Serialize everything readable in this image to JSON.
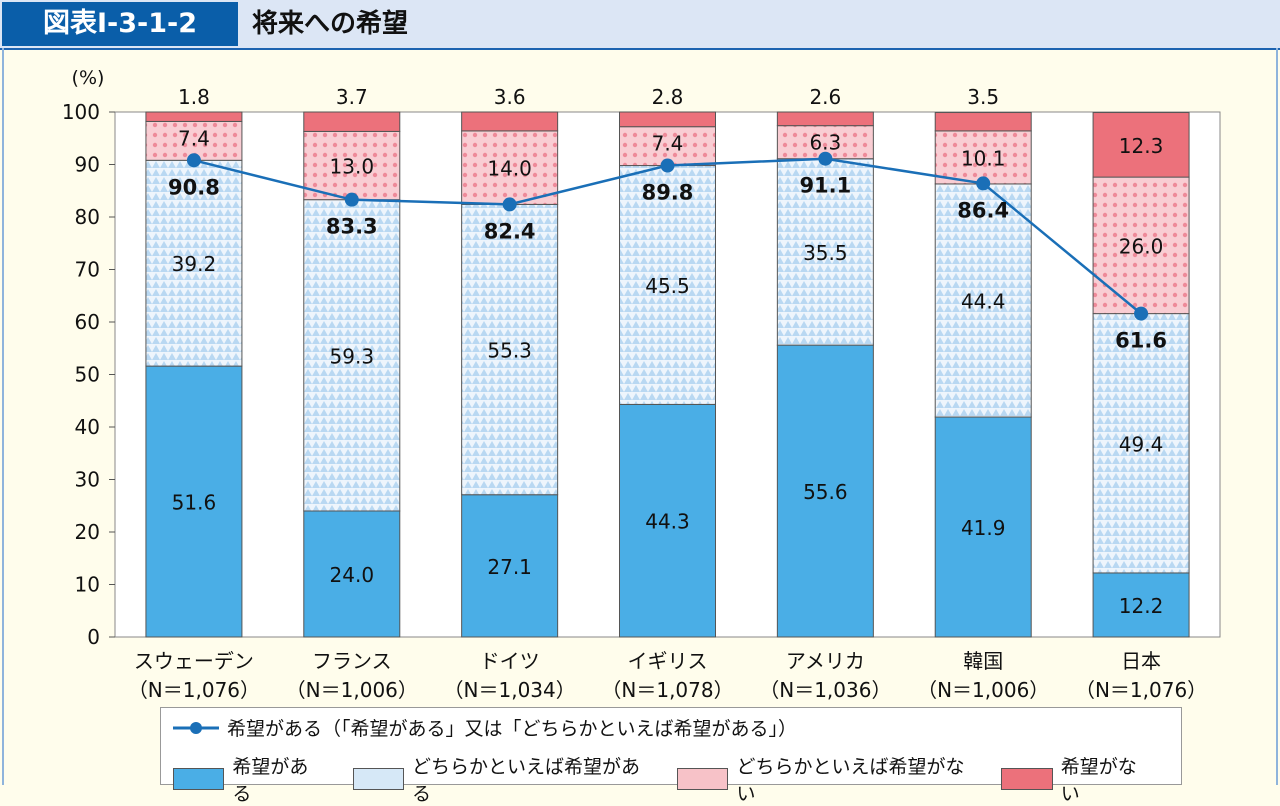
{
  "header": {
    "figure_number": "図表Ⅰ-3-1-2",
    "title": "将来への希望"
  },
  "colors": {
    "hope": "#4aaee6",
    "somewhat_hope": "#d6e8f7",
    "somewhat_no_hope": "#f7c2c8",
    "no_hope": "#ec717b",
    "line": "#1a6fb7"
  },
  "chart_data": {
    "type": "bar",
    "stacked": true,
    "ylabel": "(%)",
    "ylim": [
      0,
      100
    ],
    "yticks": [
      0,
      10,
      20,
      30,
      40,
      50,
      60,
      70,
      80,
      90,
      100
    ],
    "categories": [
      "スウェーデン",
      "フランス",
      "ドイツ",
      "イギリス",
      "アメリカ",
      "韓国",
      "日本"
    ],
    "sample_sizes": [
      "（N＝1,076）",
      "（N＝1,006）",
      "（N＝1,034）",
      "（N＝1,078）",
      "（N＝1,036）",
      "（N＝1,006）",
      "（N＝1,076）"
    ],
    "series": [
      {
        "name": "希望がある",
        "values": [
          51.6,
          24.0,
          27.1,
          44.3,
          55.6,
          41.9,
          12.2
        ]
      },
      {
        "name": "どちらかといえば希望がある",
        "values": [
          39.2,
          59.3,
          55.3,
          45.5,
          35.5,
          44.4,
          49.4
        ]
      },
      {
        "name": "どちらかといえば希望がない",
        "values": [
          7.4,
          13.0,
          14.0,
          7.4,
          6.3,
          10.1,
          26.0
        ]
      },
      {
        "name": "希望がない",
        "values": [
          1.8,
          3.7,
          3.6,
          2.8,
          2.6,
          3.5,
          12.3
        ]
      }
    ],
    "line_series": {
      "name": "希望がある（「希望がある」又は「どちらかといえば希望がある」）",
      "values": [
        90.8,
        83.3,
        82.4,
        89.8,
        91.1,
        86.4,
        61.6
      ]
    },
    "legend_position": "bottom"
  }
}
